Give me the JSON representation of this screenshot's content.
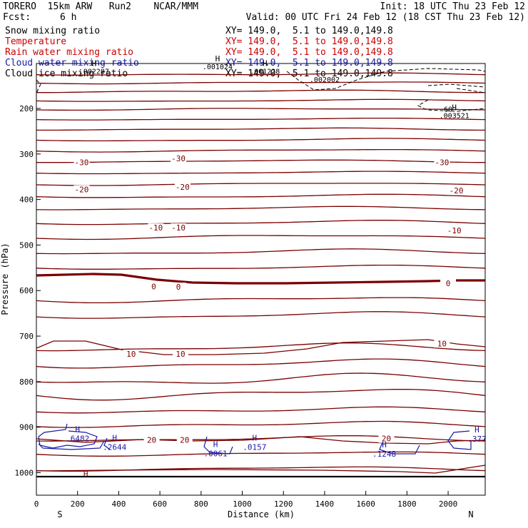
{
  "header": {
    "model_line": "TORERO  15km ARW   Run2    NCAR/MMM",
    "init": "Init: 18 UTC Thu 23 Feb 12",
    "fcst_label": "Fcst:",
    "fcst_value": "6 h",
    "valid": "Valid: 00 UTC Fri 24 Feb 12 (18 CST Thu 23 Feb 12)"
  },
  "legend": [
    {
      "name": "Snow mixing ratio",
      "coords": "XY= 149.0,  5.1 to 149.0,149.8",
      "color": "#000000"
    },
    {
      "name": "Temperature",
      "coords": "XY= 149.0,  5.1 to 149.0,149.8",
      "color": "#cc0000"
    },
    {
      "name": "Rain water mixing ratio",
      "coords": "XY= 149.0,  5.1 to 149.0,149.8",
      "color": "#cc0000"
    },
    {
      "name": "Cloud water mixing ratio",
      "coords": "XY= 149.0,  5.1 to 149.0,149.8",
      "color": "#1a1aa8"
    },
    {
      "name": "Cloud ice mixing ratio",
      "coords": "XY= 149.0,  5.1 to 149.0,149.8",
      "color": "#000000"
    }
  ],
  "chart_data": {
    "type": "line",
    "subtype": "vertical cross-section contour",
    "xlabel": "Distance (km)",
    "ylabel": "Pressure (hPa)",
    "xlim": [
      0,
      2180
    ],
    "ylim": [
      1050,
      100
    ],
    "x_ticks": [
      0,
      200,
      400,
      600,
      800,
      1000,
      1200,
      1400,
      1600,
      1800,
      2000
    ],
    "y_ticks": [
      200,
      300,
      400,
      500,
      600,
      700,
      800,
      900,
      1000
    ],
    "end_labels": {
      "left": "S",
      "right": "N"
    },
    "temperature_contours": {
      "color": "#7a0000",
      "zero_line_bold": true,
      "labels": [
        {
          "text": "-30",
          "x": 220,
          "p": 318
        },
        {
          "text": "-30",
          "x": 690,
          "p": 310
        },
        {
          "text": "-30",
          "x": 1970,
          "p": 318
        },
        {
          "text": "-20",
          "x": 220,
          "p": 378
        },
        {
          "text": "-20",
          "x": 710,
          "p": 372
        },
        {
          "text": "-20",
          "x": 2040,
          "p": 380
        },
        {
          "text": "-10",
          "x": 580,
          "p": 462
        },
        {
          "text": "-10",
          "x": 690,
          "p": 462
        },
        {
          "text": "-10",
          "x": 2030,
          "p": 468
        },
        {
          "text": "0",
          "x": 570,
          "p": 591
        },
        {
          "text": "0",
          "x": 690,
          "p": 592
        },
        {
          "text": "0",
          "x": 2000,
          "p": 584
        },
        {
          "text": "10",
          "x": 460,
          "p": 739
        },
        {
          "text": "10",
          "x": 700,
          "p": 739
        },
        {
          "text": "10",
          "x": 1970,
          "p": 716
        },
        {
          "text": "20",
          "x": 560,
          "p": 928
        },
        {
          "text": "20",
          "x": 720,
          "p": 928
        },
        {
          "text": "20",
          "x": 1700,
          "p": 925
        }
      ]
    },
    "rain_markers": [
      {
        "text": "H",
        "x": 240,
        "p": 1002
      }
    ],
    "cloud_water_maxima": [
      {
        "label": "H",
        "value": ".6482",
        "x": 200,
        "p": 917
      },
      {
        "label": "H",
        "value": ".2644",
        "x": 380,
        "p": 936
      },
      {
        "label": "H",
        "value": ".0061",
        "x": 870,
        "p": 950
      },
      {
        "label": "H",
        "value": ".0157",
        "x": 1060,
        "p": 936
      },
      {
        "label": "H",
        "value": ".1248",
        "x": 1690,
        "p": 951
      },
      {
        "label": "H",
        "value": ".377",
        "x": 2140,
        "p": 918
      }
    ],
    "snow_maxima": [
      {
        "label": "H",
        "value": ".002287",
        "x": 280,
        "p": 110
      },
      {
        "label": "H",
        "value": ".001024",
        "x": 880,
        "p": 100
      },
      {
        "label": "H",
        "value": ".001228",
        "x": 1110,
        "p": 110
      },
      {
        "label": "",
        "value": ".002002",
        "x": 1400,
        "p": 128
      },
      {
        "label": "H",
        "value": ".003521",
        "x": 2030,
        "p": 207
      },
      {
        "label": "",
        "value": "60",
        "x": 2000,
        "p": 193
      }
    ]
  }
}
